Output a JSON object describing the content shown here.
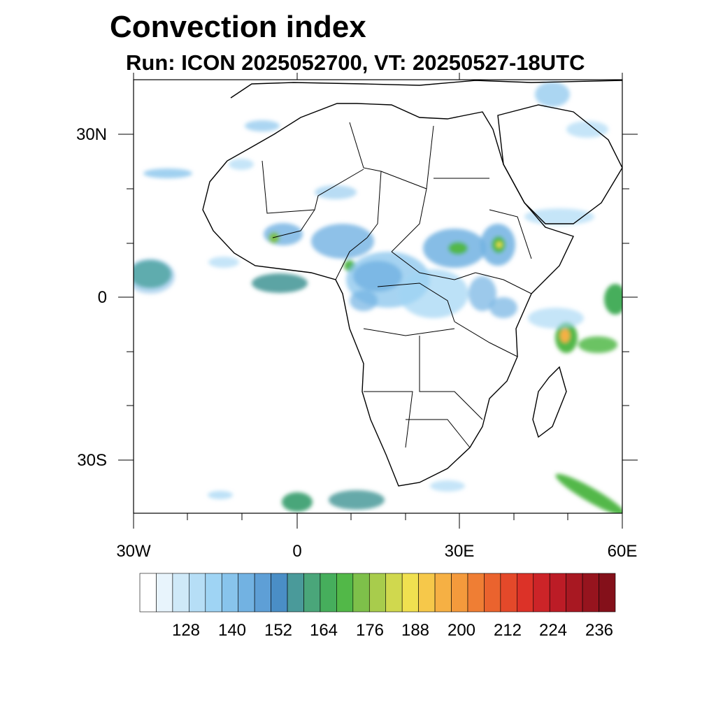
{
  "header": {
    "title": "Convection index",
    "subtitle": "Run: ICON 2025052700,  VT: 20250527-18UTC"
  },
  "map": {
    "region": "Africa",
    "lon_range": [
      -30,
      60
    ],
    "lat_range": [
      -40,
      40
    ],
    "lat_labels": [
      "30N",
      "0",
      "30S"
    ],
    "lon_labels": [
      "30W",
      "0",
      "30E",
      "60E"
    ]
  },
  "colorbar": {
    "levels": [
      128,
      140,
      152,
      164,
      176,
      188,
      200,
      212,
      224,
      236
    ],
    "labels": [
      "128",
      "140",
      "152",
      "164",
      "176",
      "188",
      "200",
      "212",
      "224",
      "236"
    ],
    "colors": [
      "#ffffff",
      "#e8f4fc",
      "#cfe9f8",
      "#b6def6",
      "#9fd4f4",
      "#88c4ec",
      "#72b2e2",
      "#5e9fd6",
      "#4a8ec6",
      "#4a9a9a",
      "#4aa67a",
      "#46ae5c",
      "#52b848",
      "#7ec04a",
      "#a8cc4c",
      "#d0d84e",
      "#f0e050",
      "#f6c84a",
      "#f6b044",
      "#f49a3c",
      "#ef7e34",
      "#ea632e",
      "#e4492a",
      "#dc3228",
      "#cc2428",
      "#bc1c26",
      "#a81822",
      "#96141e",
      "#84101a"
    ]
  }
}
